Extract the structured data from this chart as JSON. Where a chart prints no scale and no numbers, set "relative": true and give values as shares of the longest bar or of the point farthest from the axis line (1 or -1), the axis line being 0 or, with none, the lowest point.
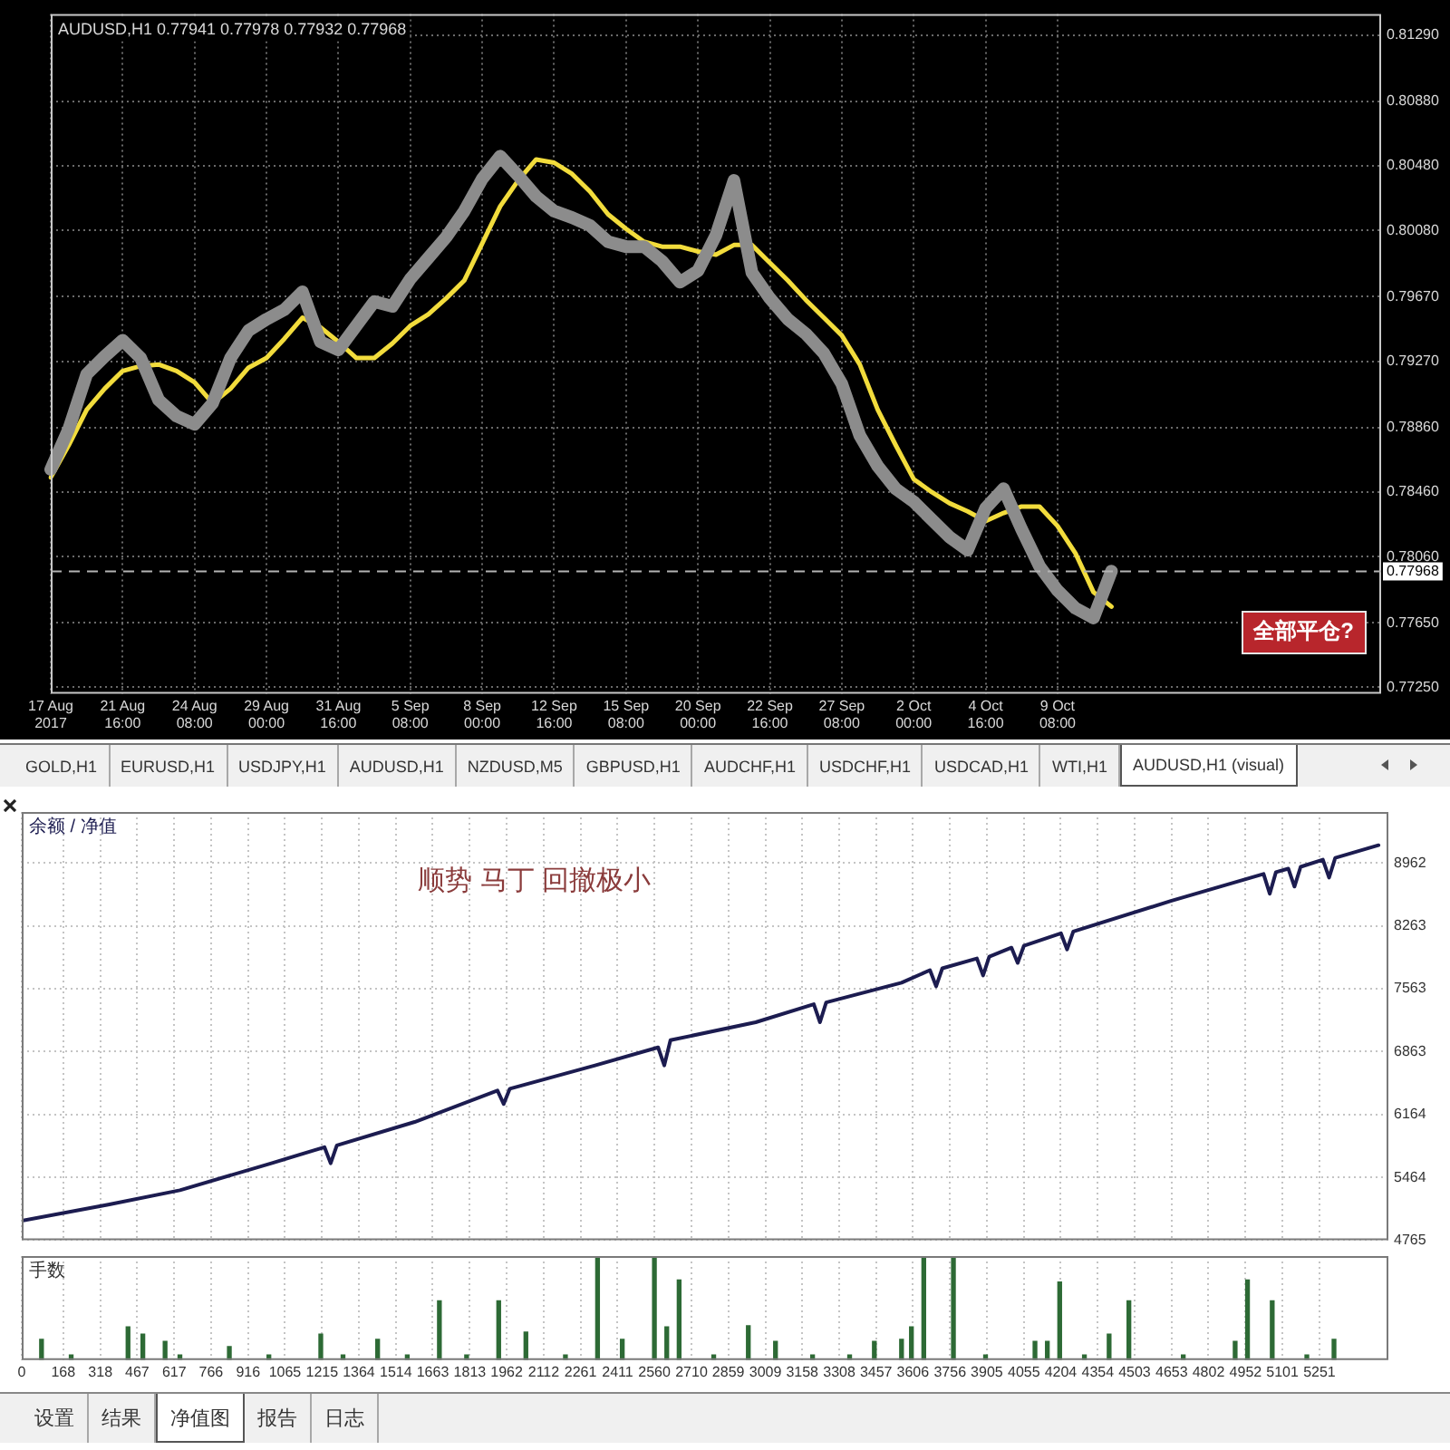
{
  "chart_data": [
    {
      "type": "line",
      "title": "AUDUSD,H1 0.77941 0.77978 0.77932 0.77968",
      "categories": [
        "17 Aug 2017",
        null,
        null,
        null,
        "21 Aug 16:00",
        null,
        null,
        null,
        "24 Aug 08:00",
        null,
        null,
        null,
        "29 Aug 00:00",
        null,
        null,
        null,
        "31 Aug 16:00",
        null,
        null,
        null,
        "5 Sep 08:00",
        null,
        null,
        null,
        "8 Sep 00:00",
        null,
        null,
        null,
        "12 Sep 16:00",
        null,
        null,
        null,
        "15 Sep 08:00",
        null,
        null,
        null,
        "20 Sep 00:00",
        null,
        null,
        null,
        "22 Sep 16:00",
        null,
        null,
        null,
        "27 Sep 08:00",
        null,
        null,
        null,
        "2 Oct 00:00",
        null,
        null,
        null,
        "4 Oct 16:00",
        null,
        null,
        null,
        "9 Oct 08:00",
        null,
        null,
        null,
        null,
        null,
        null,
        null,
        null,
        null,
        null,
        null,
        null,
        null,
        null,
        null,
        null,
        null,
        null
      ],
      "series": [
        {
          "color": "#8c8c8c",
          "values": [
            0.786,
            0.7885,
            0.7919,
            0.793,
            0.794,
            0.7929,
            0.7903,
            0.7893,
            0.7888,
            0.7901,
            0.7929,
            0.7946,
            0.7953,
            0.7959,
            0.797,
            0.7939,
            0.7934,
            0.7949,
            0.7964,
            0.7961,
            0.7978,
            0.7991,
            0.8004,
            0.802,
            0.804,
            0.8054,
            0.8042,
            0.8029,
            0.802,
            0.8016,
            0.8011,
            0.8001,
            0.7998,
            0.7998,
            0.7989,
            0.7976,
            0.7983,
            0.8005,
            0.8039,
            0.7982,
            0.7966,
            0.7953,
            0.7944,
            0.7932,
            0.7913,
            0.7881,
            0.7862,
            0.7848,
            0.784,
            0.7829,
            0.7818,
            0.781,
            0.7836,
            0.7848,
            0.7823,
            0.78,
            0.7785,
            0.7774,
            0.7768,
            0.7797,
            null,
            null,
            null,
            null,
            null,
            null,
            null,
            null,
            null,
            null,
            null,
            null,
            null,
            null,
            null
          ]
        },
        {
          "color": "#f2dc3c",
          "values": [
            0.7855,
            0.7875,
            0.7897,
            0.791,
            0.7921,
            0.7924,
            0.7925,
            0.7921,
            0.7914,
            0.7901,
            0.791,
            0.7923,
            0.7929,
            0.7941,
            0.7954,
            0.7948,
            0.7939,
            0.7929,
            0.7929,
            0.7938,
            0.7949,
            0.7956,
            0.7966,
            0.7977,
            0.8,
            0.8023,
            0.8039,
            0.8052,
            0.805,
            0.8043,
            0.8032,
            0.8018,
            0.8009,
            0.8001,
            0.7998,
            0.7998,
            0.7995,
            0.7993,
            0.7999,
            0.7999,
            0.7988,
            0.7977,
            0.7965,
            0.7954,
            0.7943,
            0.7925,
            0.7897,
            0.7875,
            0.7854,
            0.7846,
            0.7839,
            0.7834,
            0.7828,
            0.7833,
            0.7837,
            0.7837,
            0.7825,
            0.7808,
            0.7784,
            0.7775,
            null,
            null,
            null,
            null,
            null,
            null,
            null,
            null,
            null,
            null,
            null,
            null,
            null,
            null,
            null
          ]
        }
      ],
      "ylim": [
        0.7721,
        0.8142
      ],
      "yticks": [
        {
          "value": 0.7725,
          "label": "0.77250"
        },
        {
          "value": 0.7765,
          "label": "0.77650"
        },
        {
          "value": 0.7806,
          "label": "0.78060"
        },
        {
          "value": 0.7846,
          "label": "0.78460"
        },
        {
          "value": 0.7886,
          "label": "0.78860"
        },
        {
          "value": 0.7927,
          "label": "0.79270"
        },
        {
          "value": 0.7967,
          "label": "0.79670"
        },
        {
          "value": 0.8008,
          "label": "0.80080"
        },
        {
          "value": 0.8048,
          "label": "0.80480"
        },
        {
          "value": 0.8088,
          "label": "0.80880"
        },
        {
          "value": 0.8129,
          "label": "0.81290"
        }
      ],
      "grid": true,
      "ref_lines": [
        {
          "axis": "y",
          "value": 0.77968,
          "label": "0.77968",
          "color": "#b4b4b4",
          "line_style": "dashed"
        }
      ],
      "annotations": [
        "全部平仓?",
        "GOLD,H1",
        "EURUSD,H1",
        "USDJPY,H1",
        "AUDUSD,H1",
        "NZDUSD,M5",
        "GBPUSD,H1",
        "AUDCHF,H1",
        "USDCHF,H1",
        "USDCAD,H1",
        "WTI,H1",
        "AUDUSD,H1 (visual)"
      ]
    },
    {
      "type": "line",
      "x": [
        0,
        350,
        640,
        1010,
        1225,
        1250,
        1275,
        1590,
        1925,
        1950,
        1975,
        2320,
        2575,
        2600,
        2625,
        2970,
        3205,
        3230,
        3255,
        3560,
        3675,
        3700,
        3725,
        3865,
        3890,
        3915,
        4005,
        4030,
        4055,
        4205,
        4230,
        4255,
        4650,
        5025,
        5050,
        5075,
        5125,
        5150,
        5175,
        5265,
        5290,
        5315,
        5490
      ],
      "series": [
        {
          "name": "余额 / 净值",
          "color": "#1c1c50",
          "values": [
            4980,
            5160,
            5320,
            5620,
            5800,
            5620,
            5820,
            6080,
            6430,
            6280,
            6450,
            6710,
            6910,
            6710,
            6990,
            7190,
            7390,
            7190,
            7410,
            7630,
            7770,
            7590,
            7790,
            7900,
            7710,
            7920,
            8020,
            7850,
            8040,
            8180,
            8000,
            8200,
            8540,
            8840,
            8620,
            8860,
            8900,
            8700,
            8920,
            9000,
            8800,
            9020,
            9160
          ]
        }
      ],
      "xlim": [
        0,
        5530
      ],
      "xticks": [
        0,
        168,
        318,
        467,
        617,
        766,
        916,
        1065,
        1215,
        1364,
        1514,
        1663,
        1813,
        1962,
        2112,
        2261,
        2411,
        2560,
        2710,
        2859,
        3009,
        3158,
        3308,
        3457,
        3606,
        3756,
        3905,
        4055,
        4204,
        4354,
        4503,
        4653,
        4802,
        4952,
        5101,
        5251
      ],
      "ylim": [
        4765,
        9530
      ],
      "yticks": [
        4765,
        5464,
        6164,
        6863,
        7563,
        8263,
        8962
      ],
      "grid": true,
      "legend": "top left",
      "tick_labels": "y",
      "annotations": [
        "顺势 马丁 回撤极小"
      ]
    },
    {
      "type": "bar",
      "ylabel": "手数",
      "x": [
        80,
        200,
        430,
        490,
        580,
        640,
        840,
        1000,
        1210,
        1300,
        1440,
        1560,
        1690,
        1800,
        1930,
        2040,
        2200,
        2330,
        2430,
        2560,
        2610,
        2660,
        2800,
        2940,
        3050,
        3200,
        3350,
        3450,
        3560,
        3600,
        3650,
        3770,
        3900,
        4100,
        4150,
        4200,
        4300,
        4400,
        4480,
        4700,
        4910,
        4960,
        5060,
        5200,
        5310
      ],
      "values": [
        0.2,
        0.05,
        0.32,
        0.25,
        0.18,
        0.05,
        0.13,
        0.05,
        0.25,
        0.05,
        0.2,
        0.05,
        0.57,
        0.05,
        0.57,
        0.27,
        0.05,
        1,
        0.2,
        1,
        0.32,
        0.77,
        0.05,
        0.33,
        0.18,
        0.05,
        0.05,
        0.18,
        0.2,
        0.32,
        1,
        1,
        0.05,
        0.18,
        0.18,
        0.75,
        0.05,
        0.25,
        0.57,
        0.05,
        0.18,
        0.77,
        0.57,
        0.05,
        0.2
      ],
      "color": "#2d6a35",
      "relative": true,
      "xlim": [
        0,
        5530
      ],
      "xticks": [
        0,
        168,
        318,
        467,
        617,
        766,
        916,
        1065,
        1215,
        1364,
        1514,
        1663,
        1813,
        1962,
        2112,
        2261,
        2411,
        2560,
        2710,
        2859,
        3009,
        3158,
        3308,
        3457,
        3606,
        3756,
        3905,
        4055,
        4204,
        4354,
        4503,
        4653,
        4802,
        4952,
        5101,
        5251
      ],
      "grid": "x",
      "annotations": [
        "设置",
        "结果",
        "净值图",
        "报告",
        "日志"
      ]
    }
  ]
}
